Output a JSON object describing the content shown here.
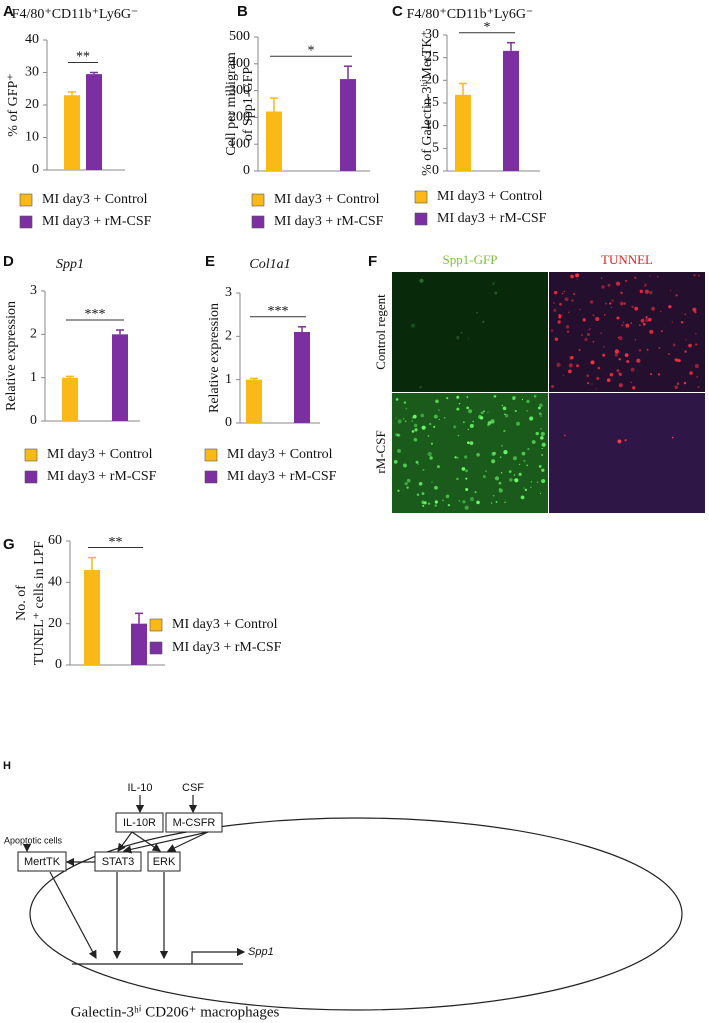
{
  "chart_data": [
    {
      "type": "bar",
      "panel": "A",
      "title": "F4/80⁺CD11b⁺Ly6G⁻",
      "ylabel": [
        "% of GFP⁺"
      ],
      "ylim": [
        0,
        40
      ],
      "yticks": [
        0,
        10,
        20,
        30,
        40
      ],
      "significance": "**",
      "series": [
        {
          "name": "MI day3 + Control",
          "color": "#fbb917",
          "values": [
            23
          ],
          "errors": [
            1
          ]
        },
        {
          "name": "MI day3 + rM-CSF",
          "color": "#7b2fa0",
          "values": [
            29.5
          ],
          "errors": [
            0.5
          ]
        }
      ]
    },
    {
      "type": "bar",
      "panel": "B",
      "ylabel": [
        "Cell per milligram",
        "of Spp1-GFP"
      ],
      "ylim": [
        0,
        500
      ],
      "yticks": [
        0,
        100,
        200,
        300,
        400,
        500
      ],
      "significance": "*",
      "series": [
        {
          "name": "MI day3 + Control",
          "color": "#fbb917",
          "values": [
            222
          ],
          "errors": [
            50
          ]
        },
        {
          "name": "MI day3 + rM-CSF",
          "color": "#7b2fa0",
          "values": [
            343
          ],
          "errors": [
            48
          ]
        }
      ]
    },
    {
      "type": "bar",
      "panel": "C",
      "title": "F4/80⁺CD11b⁺Ly6G⁻",
      "ylabel": [
        "% of Galectin-3ʰⁱMerTK⁺"
      ],
      "ylim": [
        0,
        30
      ],
      "yticks": [
        0,
        5,
        10,
        15,
        20,
        25,
        30
      ],
      "significance": "*",
      "series": [
        {
          "name": "MI day3 + Control",
          "color": "#fbb917",
          "values": [
            16.8
          ],
          "errors": [
            2.5
          ]
        },
        {
          "name": "MI day3 + rM-CSF",
          "color": "#7b2fa0",
          "values": [
            26.5
          ],
          "errors": [
            1.8
          ]
        }
      ]
    },
    {
      "type": "bar",
      "panel": "D",
      "title": "Spp1",
      "italic_title": true,
      "ylabel": [
        "Relative expression"
      ],
      "ylim": [
        0,
        3
      ],
      "yticks": [
        0,
        1,
        2,
        3
      ],
      "significance": "***",
      "series": [
        {
          "name": "MI day3 + Control",
          "color": "#fbb917",
          "values": [
            1.0
          ],
          "errors": [
            0.03
          ]
        },
        {
          "name": "MI day3 + rM-CSF",
          "color": "#7b2fa0",
          "values": [
            2.0
          ],
          "errors": [
            0.1
          ]
        }
      ]
    },
    {
      "type": "bar",
      "panel": "E",
      "title": "Col1a1",
      "italic_title": true,
      "ylabel": [
        "Relative expression"
      ],
      "ylim": [
        0,
        3
      ],
      "yticks": [
        0,
        1,
        2,
        3
      ],
      "significance": "***",
      "series": [
        {
          "name": "MI day3 + Control",
          "color": "#fbb917",
          "values": [
            1.0
          ],
          "errors": [
            0.03
          ]
        },
        {
          "name": "MI day3 + rM-CSF",
          "color": "#7b2fa0",
          "values": [
            2.1
          ],
          "errors": [
            0.12
          ]
        }
      ]
    },
    {
      "type": "bar",
      "panel": "G",
      "ylabel": [
        "No. of",
        "TUNEL⁺ cells in LPF"
      ],
      "ylim": [
        0,
        60
      ],
      "yticks": [
        0,
        20,
        40,
        60
      ],
      "significance": "**",
      "series": [
        {
          "name": "MI day3 + Control",
          "color": "#fbb917",
          "values": [
            46
          ],
          "errors": [
            6
          ]
        },
        {
          "name": "MI day3 + rM-CSF",
          "color": "#7b2fa0",
          "values": [
            20
          ],
          "errors": [
            5
          ]
        }
      ]
    }
  ],
  "panel_f": {
    "panel": "F",
    "columns": [
      "Spp1-GFP",
      "TUNNEL"
    ],
    "rows": [
      "Control regent",
      "rM-CSF"
    ]
  },
  "panel_h": {
    "panel": "H",
    "nodes": {
      "il10": "IL-10",
      "csf": "CSF",
      "il10r": "IL-10R",
      "mcsfr": "M-CSFR",
      "apoptotic": "Apoptotic cells",
      "mertk": "MertTK",
      "stat3": "STAT3",
      "erk": "ERK",
      "spp1": "Spp1"
    },
    "caption": "Galectin-3ʰⁱ CD206⁺ macrophages"
  }
}
